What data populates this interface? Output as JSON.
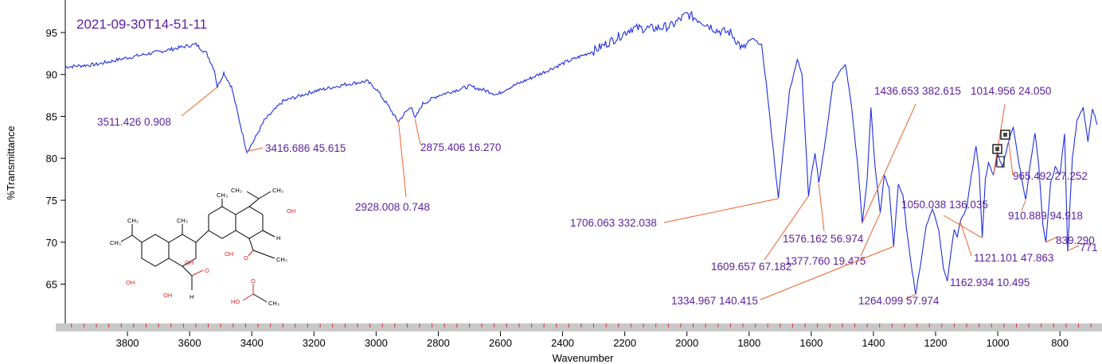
{
  "chart_data": {
    "type": "line",
    "title": "2021-09-30T14-51-11",
    "xlabel": "Wavenumber",
    "ylabel": "%Transmittance",
    "xlim": [
      4000,
      680
    ],
    "ylim": [
      60.5,
      98.5
    ],
    "x_reversed": true,
    "x_ticks": [
      3800,
      3600,
      3400,
      3200,
      3000,
      2800,
      2600,
      2400,
      2200,
      2000,
      1800,
      1600,
      1400,
      1200,
      1000,
      800
    ],
    "y_ticks": [
      65,
      70,
      75,
      80,
      85,
      90,
      95
    ],
    "grid": false,
    "series_color": "#1f2fe0",
    "leader_color": "#f0602a",
    "label_color": "#5b1f9e",
    "series": [
      {
        "points": [
          [
            4000,
            90.9
          ],
          [
            3900,
            91.2
          ],
          [
            3800,
            92.0
          ],
          [
            3700,
            92.7
          ],
          [
            3620,
            93.3
          ],
          [
            3580,
            93.6
          ],
          [
            3545,
            92.5
          ],
          [
            3520,
            90.5
          ],
          [
            3511,
            88.5
          ],
          [
            3490,
            90.2
          ],
          [
            3465,
            88.5
          ],
          [
            3440,
            84.5
          ],
          [
            3416,
            80.8
          ],
          [
            3395,
            82.0
          ],
          [
            3360,
            84.5
          ],
          [
            3300,
            86.8
          ],
          [
            3200,
            88.0
          ],
          [
            3100,
            88.8
          ],
          [
            3030,
            89.2
          ],
          [
            3000,
            88.3
          ],
          [
            2960,
            86.2
          ],
          [
            2935,
            84.7
          ],
          [
            2928,
            84.4
          ],
          [
            2905,
            85.5
          ],
          [
            2885,
            86.2
          ],
          [
            2875,
            84.7
          ],
          [
            2850,
            86.5
          ],
          [
            2800,
            87.5
          ],
          [
            2700,
            88.6
          ],
          [
            2640,
            88.0
          ],
          [
            2610,
            87.6
          ],
          [
            2580,
            88.3
          ],
          [
            2500,
            89.6
          ],
          [
            2400,
            91.3
          ],
          [
            2300,
            92.8
          ],
          [
            2220,
            94.5
          ],
          [
            2180,
            95.5
          ],
          [
            2100,
            95.5
          ],
          [
            2050,
            95.8
          ],
          [
            2000,
            97.2
          ],
          [
            1950,
            96.3
          ],
          [
            1900,
            95.2
          ],
          [
            1860,
            95.0
          ],
          [
            1820,
            93.0
          ],
          [
            1790,
            94.3
          ],
          [
            1760,
            93.5
          ],
          [
            1745,
            89.0
          ],
          [
            1725,
            82.0
          ],
          [
            1706,
            75.2
          ],
          [
            1690,
            81.0
          ],
          [
            1670,
            88.0
          ],
          [
            1645,
            91.8
          ],
          [
            1630,
            90.0
          ],
          [
            1615,
            80.0
          ],
          [
            1609,
            75.5
          ],
          [
            1596,
            79.0
          ],
          [
            1588,
            80.5
          ],
          [
            1580,
            78.5
          ],
          [
            1576,
            77.0
          ],
          [
            1555,
            82.0
          ],
          [
            1530,
            89.0
          ],
          [
            1505,
            90.5
          ],
          [
            1490,
            91.2
          ],
          [
            1470,
            86.0
          ],
          [
            1450,
            79.0
          ],
          [
            1436,
            72.3
          ],
          [
            1420,
            77.5
          ],
          [
            1408,
            86.0
          ],
          [
            1395,
            79.0
          ],
          [
            1378,
            73.5
          ],
          [
            1365,
            78.0
          ],
          [
            1350,
            76.5
          ],
          [
            1335,
            69.5
          ],
          [
            1320,
            77.0
          ],
          [
            1305,
            75.5
          ],
          [
            1290,
            70.5
          ],
          [
            1275,
            66.5
          ],
          [
            1264,
            63.8
          ],
          [
            1250,
            67.0
          ],
          [
            1230,
            72.0
          ],
          [
            1210,
            74.0
          ],
          [
            1190,
            71.5
          ],
          [
            1175,
            67.0
          ],
          [
            1162,
            65.4
          ],
          [
            1150,
            69.0
          ],
          [
            1140,
            71.5
          ],
          [
            1130,
            70.5
          ],
          [
            1121,
            72.5
          ],
          [
            1100,
            74.0
          ],
          [
            1085,
            78.0
          ],
          [
            1070,
            81.5
          ],
          [
            1060,
            78.5
          ],
          [
            1050,
            70.5
          ],
          [
            1040,
            77.5
          ],
          [
            1030,
            79.5
          ],
          [
            1014,
            78.0
          ],
          [
            1000,
            80.5
          ],
          [
            985,
            79.0
          ],
          [
            965,
            82.0
          ],
          [
            950,
            83.8
          ],
          [
            935,
            80.0
          ],
          [
            920,
            77.0
          ],
          [
            910,
            75.0
          ],
          [
            895,
            79.5
          ],
          [
            880,
            83.0
          ],
          [
            868,
            79.0
          ],
          [
            855,
            72.0
          ],
          [
            845,
            70.0
          ],
          [
            830,
            77.0
          ],
          [
            815,
            79.0
          ],
          [
            800,
            78.0
          ],
          [
            785,
            83.0
          ],
          [
            775,
            69.0
          ],
          [
            760,
            80.0
          ],
          [
            745,
            84.5
          ],
          [
            725,
            86.0
          ],
          [
            710,
            82.0
          ],
          [
            695,
            86.0
          ],
          [
            680,
            84.0
          ]
        ]
      }
    ],
    "annotations": [
      {
        "text": "3511.426  0.908",
        "peak": [
          3511,
          88.5
        ]
      },
      {
        "text": "3416.686  45.615",
        "peak": [
          3416,
          80.8
        ]
      },
      {
        "text": "2928.008  0.748",
        "peak": [
          2928,
          84.4
        ]
      },
      {
        "text": "2875.406  16.270",
        "peak": [
          2875,
          84.7
        ]
      },
      {
        "text": "1706.063  332.038",
        "peak": [
          1706,
          75.2
        ]
      },
      {
        "text": "1609.657  67.182",
        "peak": [
          1609,
          75.5
        ]
      },
      {
        "text": "1576.162  56.974",
        "peak": [
          1576,
          77.0
        ]
      },
      {
        "text": "1436.653  382.615",
        "peak": [
          1436,
          72.3
        ]
      },
      {
        "text": "1377.760  19.475",
        "peak": [
          1378,
          73.5
        ]
      },
      {
        "text": "1334.967  140.415",
        "peak": [
          1335,
          69.5
        ]
      },
      {
        "text": "1264.099  57.974",
        "peak": [
          1264,
          63.8
        ]
      },
      {
        "text": "1162.934  10.495",
        "peak": [
          1162,
          65.4
        ]
      },
      {
        "text": "1121.101  47.863",
        "peak": [
          1121,
          72.5
        ]
      },
      {
        "text": "1050.038  136.035",
        "peak": [
          1050,
          70.5
        ]
      },
      {
        "text": "1014.956  24.050",
        "peak": [
          1014,
          78.0
        ]
      },
      {
        "text": "965.492  27.252",
        "peak": [
          965,
          82.0
        ]
      },
      {
        "text": "910.889  94.918",
        "peak": [
          910,
          75.0
        ]
      },
      {
        "text": "839.290",
        "peak": [
          845,
          70.0
        ]
      },
      {
        "text": "771",
        "peak": [
          775,
          69.0
        ]
      }
    ]
  },
  "structure_labels": {
    "oh1": "OH",
    "oh2": "OH",
    "oh3": "OH",
    "oh4": "OH",
    "oh5": "OH",
    "o1": "O",
    "o2": "O",
    "o3": "O",
    "h1": "H",
    "h2": "H",
    "ch3_1": "CH₃",
    "ch3_2": "CH₃",
    "ch3_3": "CH₃",
    "ch3_4": "CH₃",
    "ch3_5": "CH₃",
    "ch3_6": "CH₃",
    "ch3_7": "CH₃",
    "ho": "HO",
    "ch3_8": "CH₃"
  }
}
